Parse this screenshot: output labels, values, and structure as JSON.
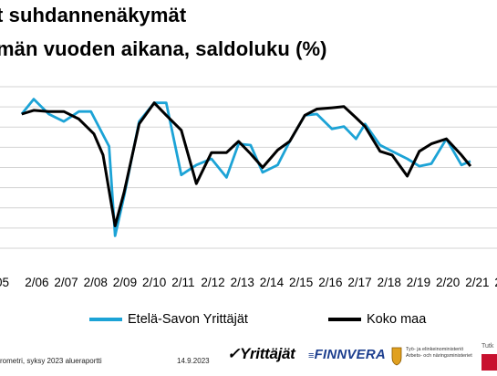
{
  "title": {
    "line1": "t suhdannenäkymät",
    "line2": "män vuoden aikana, saldoluku (%)"
  },
  "chart_data": {
    "type": "line",
    "x_ticks": [
      "05",
      "2/06",
      "2/07",
      "2/08",
      "2/09",
      "2/10",
      "2/11",
      "2/12",
      "2/13",
      "2/14",
      "2/15",
      "2/16",
      "2/17",
      "2/18",
      "2/19",
      "2/20",
      "2/21",
      "2"
    ],
    "grid": true,
    "y_gridlines": 8,
    "legend_position": "bottom",
    "series": [
      {
        "name": "Etelä-Savon Yrittäjät",
        "color": "#1ca3d6",
        "points": [
          [
            2005.6,
            38
          ],
          [
            2006.0,
            50
          ],
          [
            2006.5,
            38
          ],
          [
            2007.0,
            32
          ],
          [
            2007.5,
            40
          ],
          [
            2007.9,
            40
          ],
          [
            2008.5,
            12
          ],
          [
            2008.7,
            -60
          ],
          [
            2009.0,
            -28
          ],
          [
            2009.5,
            32
          ],
          [
            2010.0,
            47
          ],
          [
            2010.4,
            47
          ],
          [
            2010.9,
            -11
          ],
          [
            2011.4,
            -3
          ],
          [
            2011.9,
            2
          ],
          [
            2012.4,
            -13
          ],
          [
            2012.8,
            14
          ],
          [
            2013.2,
            13
          ],
          [
            2013.6,
            -9
          ],
          [
            2014.1,
            -3
          ],
          [
            2014.5,
            16
          ],
          [
            2015.0,
            37
          ],
          [
            2015.4,
            38
          ],
          [
            2015.9,
            26
          ],
          [
            2016.3,
            28
          ],
          [
            2016.7,
            18
          ],
          [
            2017.0,
            30
          ],
          [
            2017.5,
            13
          ],
          [
            2017.9,
            8
          ],
          [
            2018.4,
            2
          ],
          [
            2018.8,
            -4
          ],
          [
            2019.2,
            -2
          ],
          [
            2019.7,
            18
          ],
          [
            2020.2,
            -3
          ],
          [
            2020.5,
            0
          ]
        ]
      },
      {
        "name": "Koko maa",
        "color": "#000000",
        "points": [
          [
            2005.6,
            38
          ],
          [
            2006.0,
            41
          ],
          [
            2006.5,
            40
          ],
          [
            2007.0,
            40
          ],
          [
            2007.5,
            34
          ],
          [
            2008.0,
            22
          ],
          [
            2008.3,
            5
          ],
          [
            2008.7,
            -52
          ],
          [
            2009.0,
            -25
          ],
          [
            2009.5,
            30
          ],
          [
            2010.0,
            47
          ],
          [
            2010.4,
            37
          ],
          [
            2010.9,
            25
          ],
          [
            2011.4,
            -18
          ],
          [
            2011.9,
            7
          ],
          [
            2012.4,
            7
          ],
          [
            2012.8,
            16
          ],
          [
            2013.2,
            6
          ],
          [
            2013.6,
            -5
          ],
          [
            2014.1,
            9
          ],
          [
            2014.5,
            16
          ],
          [
            2015.0,
            37
          ],
          [
            2015.4,
            42
          ],
          [
            2015.9,
            43
          ],
          [
            2016.3,
            44
          ],
          [
            2016.7,
            35
          ],
          [
            2017.0,
            28
          ],
          [
            2017.5,
            8
          ],
          [
            2017.9,
            5
          ],
          [
            2018.4,
            -12
          ],
          [
            2018.8,
            8
          ],
          [
            2019.2,
            14
          ],
          [
            2019.7,
            18
          ],
          [
            2020.2,
            5
          ],
          [
            2020.5,
            -4
          ]
        ]
      }
    ]
  },
  "footer": {
    "source": "rometri, syksy 2023 alueraportti",
    "date": "14.9.2023",
    "logo_yrittajat": "Yrittäjät",
    "logo_finnvera": "FINNVERA",
    "logo_tem": "Työ- ja elinkeinoministeriö Arbets- och näringsministeriet",
    "logo_tutkimus": "Tutk"
  }
}
